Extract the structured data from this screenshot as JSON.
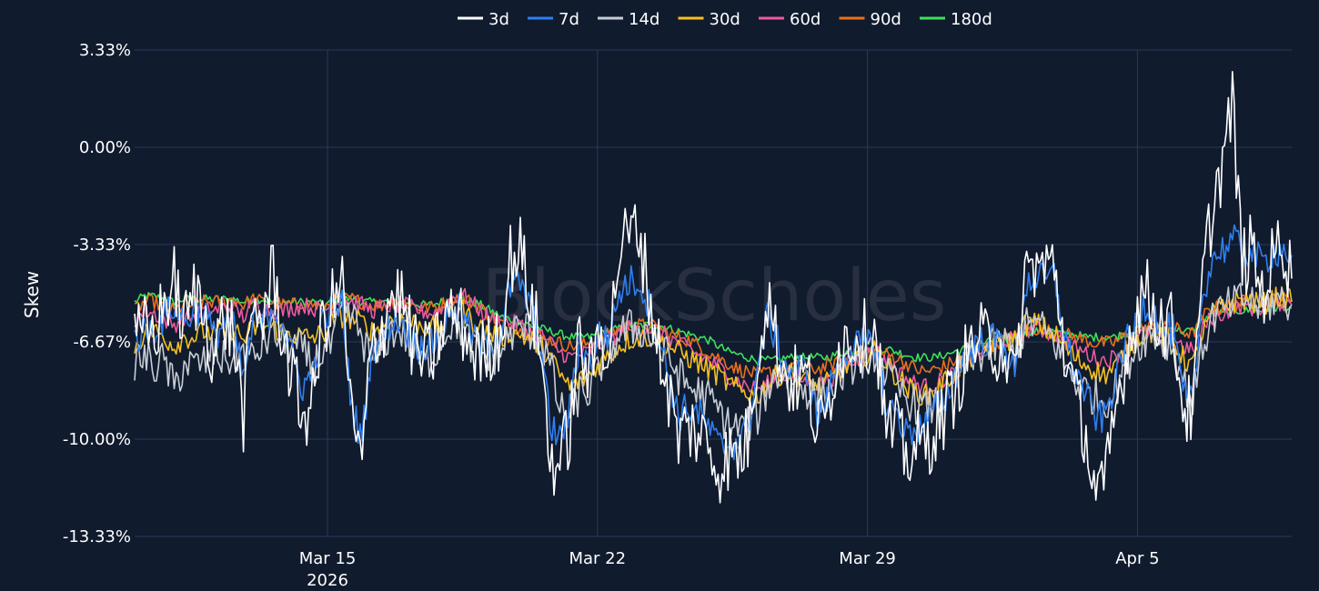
{
  "chart_data": {
    "type": "line",
    "ylabel": "Skew",
    "watermark": "BlockScholes",
    "ylim": [
      -13.33,
      3.33
    ],
    "y_ticks": [
      "3.33%",
      "0.00%",
      "-3.33%",
      "-6.67%",
      "-10.00%",
      "-13.33%"
    ],
    "x_range": [
      "2026-03-10",
      "2026-04-09"
    ],
    "x_ticks": [
      {
        "date": "2026-03-15",
        "label": "Mar 15",
        "sublabel": "2026"
      },
      {
        "date": "2026-03-22",
        "label": "Mar 22",
        "sublabel": ""
      },
      {
        "date": "2026-03-29",
        "label": "Mar 29",
        "sublabel": ""
      },
      {
        "date": "2026-04-05",
        "label": "Apr 5",
        "sublabel": ""
      }
    ],
    "legend_position": "top-center",
    "grid": true,
    "series": [
      {
        "name": "3d",
        "color": "#ffffff",
        "noise": 1.3,
        "values": [
          -6.8,
          -6.3,
          -6.4,
          -5.4,
          -4.6,
          -6.2,
          -5.0,
          -5.6,
          -7.2,
          -5.8,
          -6.4,
          -9.2,
          -5.6,
          -5.8,
          -4.2,
          -6.5,
          -8.0,
          -9.2,
          -8.8,
          -6.0,
          -5.4,
          -4.7,
          -9.6,
          -10.8,
          -6.7,
          -6.2,
          -5.0,
          -5.2,
          -6.6,
          -7.2,
          -7.2,
          -6.2,
          -5.7,
          -6.0,
          -6.8,
          -7.2,
          -6.8,
          -6.3,
          -3.8,
          -3.5,
          -5.2,
          -6.8,
          -10.6,
          -10.9,
          -9.6,
          -6.5,
          -8.0,
          -6.2,
          -6.8,
          -3.5,
          -3.0,
          -2.8,
          -5.0,
          -6.9,
          -8.4,
          -10.0,
          -9.5,
          -9.8,
          -10.2,
          -11.0,
          -10.6,
          -10.6,
          -10.0,
          -7.0,
          -5.0,
          -6.8,
          -8.0,
          -8.0,
          -7.8,
          -9.8,
          -9.2,
          -7.0,
          -6.6,
          -6.4,
          -6.5,
          -6.3,
          -9.8,
          -9.7,
          -10.6,
          -10.3,
          -10.2,
          -9.6,
          -9.0,
          -8.2,
          -7.3,
          -6.6,
          -6.6,
          -6.8,
          -6.8,
          -8.3,
          -4.4,
          -4.0,
          -4.2,
          -4.0,
          -6.8,
          -8.5,
          -9.5,
          -11.6,
          -12.0,
          -9.4,
          -7.5,
          -6.0,
          -4.8,
          -5.5,
          -6.0,
          -6.2,
          -8.8,
          -9.2,
          -4.5,
          -2.0,
          -0.5,
          1.5,
          -4.0,
          -3.5,
          -5.0,
          -4.0,
          -3.0,
          -4.5
        ]
      },
      {
        "name": "7d",
        "color": "#2f7ff0",
        "noise": 0.6,
        "values": [
          -6.6,
          -6.3,
          -6.2,
          -5.8,
          -5.4,
          -6.0,
          -5.6,
          -5.5,
          -6.5,
          -6.0,
          -6.2,
          -8.0,
          -6.0,
          -6.0,
          -5.4,
          -6.0,
          -7.3,
          -8.2,
          -7.8,
          -6.0,
          -5.6,
          -5.4,
          -9.0,
          -10.0,
          -6.8,
          -6.6,
          -5.9,
          -5.9,
          -6.6,
          -6.8,
          -6.8,
          -6.3,
          -5.6,
          -5.6,
          -6.4,
          -6.8,
          -6.6,
          -6.4,
          -4.8,
          -4.6,
          -5.6,
          -6.6,
          -9.5,
          -10.0,
          -9.0,
          -6.6,
          -7.4,
          -6.4,
          -6.5,
          -5.0,
          -4.6,
          -4.6,
          -5.4,
          -6.6,
          -7.8,
          -9.2,
          -8.9,
          -9.1,
          -9.6,
          -10.2,
          -10.2,
          -10.1,
          -9.6,
          -7.6,
          -5.8,
          -6.7,
          -7.6,
          -7.6,
          -7.6,
          -9.2,
          -8.7,
          -7.4,
          -6.9,
          -6.8,
          -6.8,
          -6.8,
          -9.0,
          -9.0,
          -9.8,
          -9.6,
          -9.5,
          -9.0,
          -8.6,
          -7.8,
          -7.2,
          -6.8,
          -6.6,
          -6.6,
          -6.7,
          -7.8,
          -4.8,
          -4.4,
          -4.6,
          -4.4,
          -6.4,
          -7.6,
          -8.3,
          -9.2,
          -9.3,
          -8.2,
          -6.9,
          -6.3,
          -5.3,
          -5.6,
          -6.2,
          -6.3,
          -8.5,
          -8.8,
          -5.0,
          -3.8,
          -3.5,
          -3.2,
          -3.5,
          -3.6,
          -4.0,
          -3.6,
          -3.5,
          -3.7
        ]
      },
      {
        "name": "14d",
        "color": "#c8cdd4",
        "noise": 0.7,
        "values": [
          -7.3,
          -7.2,
          -7.5,
          -7.3,
          -8.3,
          -7.4,
          -7.5,
          -7.4,
          -7.0,
          -7.3,
          -7.2,
          -7.0,
          -7.3,
          -6.7,
          -6.3,
          -6.7,
          -6.8,
          -7.0,
          -7.5,
          -7.0,
          -6.8,
          -5.6,
          -5.8,
          -6.5,
          -7.4,
          -6.8,
          -6.3,
          -6.3,
          -6.8,
          -7.4,
          -7.2,
          -6.6,
          -6.0,
          -6.2,
          -6.8,
          -7.1,
          -7.2,
          -7.0,
          -6.4,
          -6.2,
          -6.3,
          -6.6,
          -7.4,
          -9.0,
          -9.3,
          -8.4,
          -8.4,
          -7.5,
          -7.0,
          -6.4,
          -6.2,
          -6.2,
          -6.4,
          -6.9,
          -7.2,
          -7.8,
          -8.2,
          -8.4,
          -8.6,
          -9.0,
          -9.5,
          -9.6,
          -9.5,
          -9.2,
          -8.2,
          -7.8,
          -7.8,
          -8.0,
          -8.3,
          -8.6,
          -8.4,
          -8.0,
          -7.6,
          -7.3,
          -7.2,
          -7.0,
          -7.8,
          -8.2,
          -8.6,
          -8.8,
          -9.0,
          -8.8,
          -8.4,
          -8.0,
          -7.4,
          -7.2,
          -7.0,
          -6.8,
          -6.7,
          -7.0,
          -6.2,
          -6.0,
          -6.3,
          -6.6,
          -7.4,
          -8.0,
          -8.3,
          -8.5,
          -8.7,
          -8.4,
          -7.6,
          -7.0,
          -6.5,
          -6.4,
          -6.6,
          -6.8,
          -8.0,
          -8.6,
          -6.8,
          -5.8,
          -5.6,
          -5.4,
          -5.2,
          -5.3,
          -5.5,
          -5.3,
          -5.2,
          -5.4
        ]
      },
      {
        "name": "30d",
        "color": "#f5c020",
        "noise": 0.4,
        "values": [
          -6.8,
          -6.4,
          -6.3,
          -6.5,
          -6.8,
          -6.5,
          -6.5,
          -6.3,
          -6.4,
          -6.3,
          -6.2,
          -6.6,
          -6.2,
          -6.1,
          -6.2,
          -6.3,
          -6.4,
          -6.5,
          -6.5,
          -6.4,
          -6.0,
          -5.8,
          -5.9,
          -6.0,
          -6.3,
          -6.1,
          -5.9,
          -5.9,
          -6.0,
          -6.1,
          -6.2,
          -6.1,
          -5.6,
          -5.5,
          -5.9,
          -6.2,
          -6.4,
          -6.5,
          -6.4,
          -6.4,
          -6.6,
          -6.8,
          -7.2,
          -7.8,
          -8.2,
          -8.0,
          -7.8,
          -7.4,
          -7.1,
          -6.8,
          -6.6,
          -6.5,
          -6.5,
          -6.6,
          -6.8,
          -7.0,
          -7.2,
          -7.4,
          -7.6,
          -7.8,
          -8.1,
          -8.3,
          -8.4,
          -8.5,
          -8.1,
          -7.8,
          -7.7,
          -7.8,
          -8.0,
          -8.2,
          -8.1,
          -7.8,
          -7.5,
          -7.2,
          -7.1,
          -7.0,
          -7.4,
          -7.8,
          -8.2,
          -8.4,
          -8.5,
          -8.3,
          -8.0,
          -7.7,
          -7.3,
          -7.1,
          -6.9,
          -6.7,
          -6.6,
          -6.6,
          -6.1,
          -6.0,
          -6.2,
          -6.4,
          -6.8,
          -7.2,
          -7.4,
          -7.6,
          -7.8,
          -7.6,
          -7.1,
          -6.7,
          -6.4,
          -6.3,
          -6.5,
          -6.6,
          -7.2,
          -7.5,
          -6.4,
          -5.7,
          -5.5,
          -5.3,
          -5.2,
          -5.3,
          -5.4,
          -5.2,
          -5.1,
          -5.3
        ]
      },
      {
        "name": "60d",
        "color": "#ec5aa0",
        "noise": 0.3,
        "values": [
          -6.0,
          -5.6,
          -5.7,
          -5.9,
          -6.1,
          -5.8,
          -5.8,
          -5.6,
          -5.6,
          -5.5,
          -5.5,
          -5.8,
          -5.4,
          -5.5,
          -5.6,
          -5.6,
          -5.5,
          -5.4,
          -5.5,
          -5.6,
          -5.4,
          -5.2,
          -5.3,
          -5.4,
          -5.6,
          -5.5,
          -5.4,
          -5.4,
          -5.5,
          -5.6,
          -5.7,
          -5.6,
          -5.2,
          -5.0,
          -5.3,
          -5.6,
          -5.9,
          -6.0,
          -6.0,
          -6.1,
          -6.3,
          -6.4,
          -6.7,
          -7.0,
          -7.2,
          -7.1,
          -7.0,
          -6.8,
          -6.6,
          -6.4,
          -6.2,
          -6.2,
          -6.2,
          -6.3,
          -6.5,
          -6.7,
          -6.9,
          -7.1,
          -7.3,
          -7.5,
          -7.8,
          -8.0,
          -8.2,
          -8.3,
          -8.1,
          -7.9,
          -7.8,
          -7.9,
          -8.0,
          -8.1,
          -8.0,
          -7.8,
          -7.5,
          -7.3,
          -7.1,
          -7.0,
          -7.3,
          -7.6,
          -7.9,
          -8.1,
          -8.2,
          -8.1,
          -7.9,
          -7.7,
          -7.4,
          -7.2,
          -7.0,
          -6.8,
          -6.6,
          -6.6,
          -6.3,
          -6.2,
          -6.3,
          -6.4,
          -6.6,
          -6.9,
          -7.0,
          -7.2,
          -7.3,
          -7.2,
          -6.9,
          -6.6,
          -6.4,
          -6.3,
          -6.4,
          -6.5,
          -6.8,
          -7.0,
          -6.2,
          -5.8,
          -5.7,
          -5.5,
          -5.4,
          -5.5,
          -5.5,
          -5.4,
          -5.3,
          -5.4
        ]
      },
      {
        "name": "90d",
        "color": "#e8701e",
        "noise": 0.25,
        "values": [
          -5.6,
          -5.3,
          -5.3,
          -5.5,
          -5.6,
          -5.4,
          -5.4,
          -5.3,
          -5.3,
          -5.3,
          -5.2,
          -5.4,
          -5.2,
          -5.3,
          -5.3,
          -5.4,
          -5.4,
          -5.3,
          -5.4,
          -5.5,
          -5.3,
          -5.2,
          -5.2,
          -5.3,
          -5.4,
          -5.4,
          -5.3,
          -5.3,
          -5.4,
          -5.5,
          -5.5,
          -5.4,
          -5.2,
          -5.1,
          -5.3,
          -5.5,
          -5.8,
          -6.0,
          -6.1,
          -6.2,
          -6.4,
          -6.5,
          -6.6,
          -6.7,
          -6.8,
          -6.8,
          -6.7,
          -6.6,
          -6.4,
          -6.2,
          -6.1,
          -6.1,
          -6.1,
          -6.2,
          -6.4,
          -6.5,
          -6.6,
          -6.8,
          -7.0,
          -7.2,
          -7.4,
          -7.6,
          -7.7,
          -7.8,
          -7.7,
          -7.6,
          -7.5,
          -7.5,
          -7.6,
          -7.6,
          -7.5,
          -7.4,
          -7.2,
          -7.1,
          -7.0,
          -7.0,
          -7.1,
          -7.2,
          -7.4,
          -7.6,
          -7.7,
          -7.6,
          -7.5,
          -7.3,
          -7.1,
          -7.0,
          -6.9,
          -6.7,
          -6.6,
          -6.5,
          -6.3,
          -6.2,
          -6.3,
          -6.3,
          -6.4,
          -6.5,
          -6.6,
          -6.7,
          -6.7,
          -6.7,
          -6.5,
          -6.3,
          -6.2,
          -6.1,
          -6.2,
          -6.2,
          -6.3,
          -6.4,
          -5.8,
          -5.5,
          -5.5,
          -5.4,
          -5.3,
          -5.3,
          -5.3,
          -5.2,
          -5.2,
          -5.2
        ]
      },
      {
        "name": "180d",
        "color": "#3ee05a",
        "noise": 0.15,
        "values": [
          -5.3,
          -5.1,
          -5.1,
          -5.2,
          -5.3,
          -5.2,
          -5.2,
          -5.2,
          -5.2,
          -5.2,
          -5.2,
          -5.3,
          -5.2,
          -5.2,
          -5.3,
          -5.3,
          -5.3,
          -5.3,
          -5.3,
          -5.4,
          -5.3,
          -5.2,
          -5.2,
          -5.3,
          -5.3,
          -5.3,
          -5.3,
          -5.3,
          -5.3,
          -5.4,
          -5.4,
          -5.3,
          -5.2,
          -5.2,
          -5.3,
          -5.4,
          -5.6,
          -5.8,
          -5.9,
          -6.0,
          -6.1,
          -6.2,
          -6.3,
          -6.4,
          -6.5,
          -6.5,
          -6.5,
          -6.4,
          -6.3,
          -6.2,
          -6.1,
          -6.1,
          -6.1,
          -6.1,
          -6.2,
          -6.3,
          -6.4,
          -6.5,
          -6.6,
          -6.8,
          -7.0,
          -7.1,
          -7.2,
          -7.3,
          -7.3,
          -7.3,
          -7.2,
          -7.2,
          -7.2,
          -7.2,
          -7.2,
          -7.1,
          -7.0,
          -7.0,
          -6.9,
          -6.9,
          -6.9,
          -7.0,
          -7.1,
          -7.2,
          -7.2,
          -7.2,
          -7.1,
          -7.0,
          -6.9,
          -6.8,
          -6.7,
          -6.6,
          -6.6,
          -6.5,
          -6.3,
          -6.3,
          -6.3,
          -6.3,
          -6.4,
          -6.4,
          -6.5,
          -6.5,
          -6.5,
          -6.5,
          -6.4,
          -6.3,
          -6.2,
          -6.2,
          -6.2,
          -6.2,
          -6.3,
          -6.3,
          -5.9,
          -5.7,
          -5.7,
          -5.6,
          -5.6,
          -5.6,
          -5.6,
          -5.5,
          -5.5,
          -5.5
        ]
      }
    ]
  }
}
